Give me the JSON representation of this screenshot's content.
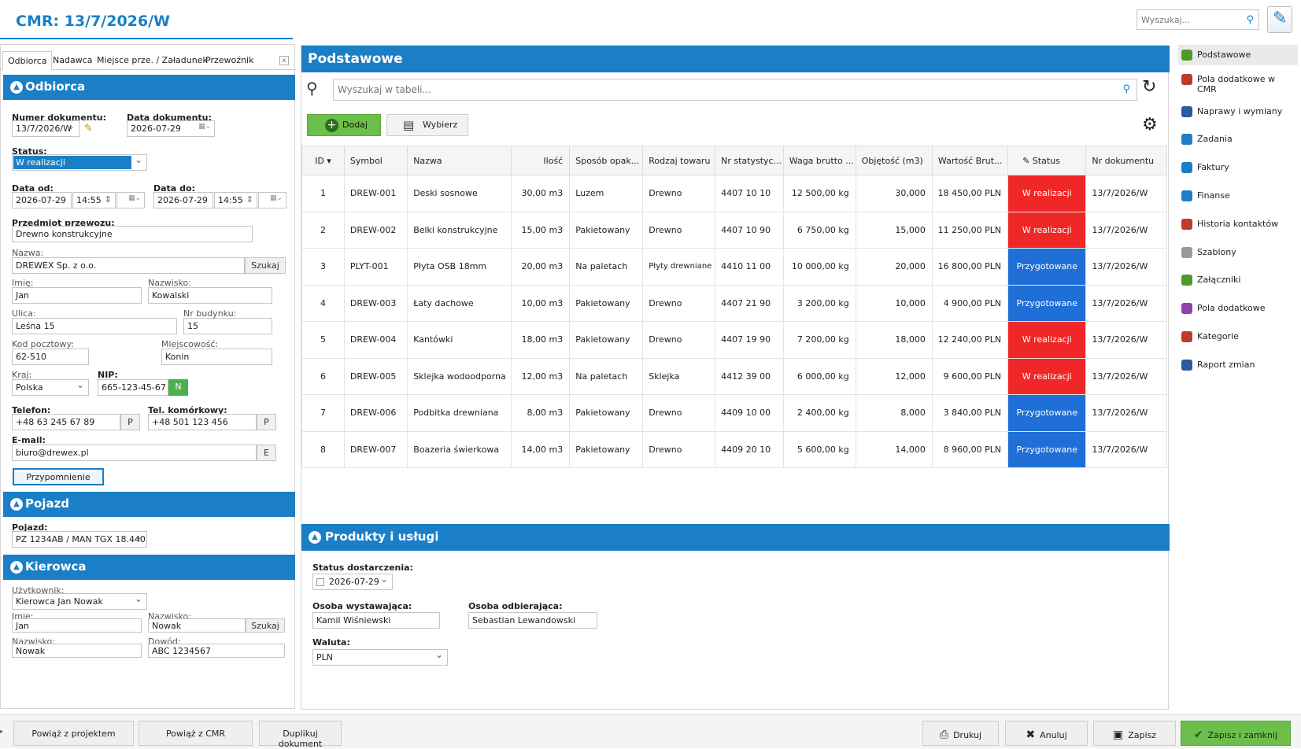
{
  "app": {
    "title": "CMR: 13/7/2026/W",
    "search_placeholder": "Wyszukaj..."
  },
  "left_tabs": [
    "Odbiorca",
    "Nadawca",
    "Miejsce prze. / Załadunek",
    "Przewoźnik"
  ],
  "odbiorca": {
    "header": "Odbiorca",
    "numer_label": "Numer dokumentu:",
    "numer": "13/7/2026/W",
    "data_dok_label": "Data dokumentu:",
    "data_dok": "2026-07-29",
    "status_label": "Status:",
    "status": "W realizacji",
    "data_od_label": "Data od:",
    "data_od": "2026-07-29",
    "czas_od": "14:55",
    "data_do_label": "Data do:",
    "data_do": "2026-07-29",
    "czas_do": "14:55",
    "przedmiot_label": "Przedmiot przewozu:",
    "przedmiot": "Drewno konstrukcyjne",
    "nazwa_label": "Nazwa:",
    "nazwa": "DREWEX Sp. z o.o.",
    "szukaj": "Szukaj",
    "imie_label": "Imię:",
    "imie": "Jan",
    "nazwisko_label": "Nazwisko:",
    "nazwisko": "Kowalski",
    "ulica_label": "Ulica:",
    "ulica": "Leśna 15",
    "nr_bud_label": "Nr budynku:",
    "nr_bud": "15",
    "kod_label": "Kod pocztowy:",
    "kod": "62-510",
    "miejsc_label": "Miejscowość:",
    "miejsc": "Konin",
    "kraj_label": "Kraj:",
    "kraj": "Polska",
    "nip_label": "NIP:",
    "nip": "665-123-45-67",
    "nip_btn": "N",
    "tel_label": "Telefon:",
    "tel": "+48 63 245 67 89",
    "p_btn": "P",
    "kom_label": "Tel. komórkowy:",
    "kom": "+48 501 123 456",
    "email_label": "E-mail:",
    "email": "biuro@drewex.pl",
    "e_btn": "E",
    "przypomnienie": "Przypomnienie"
  },
  "pojazd": {
    "header": "Pojazd",
    "label": "Pojazd:",
    "value": "PZ 1234AB / MAN TGX 18.440"
  },
  "kierowca": {
    "header": "Kierowca",
    "uzytk_label": "Użytkownik:",
    "uzytk": "Kierowca Jan Nowak",
    "imie_label": "Imię:",
    "imie": "Jan",
    "nazwisko_label": "Nazwisko:",
    "nazwisko": "Nowak",
    "szukaj": "Szukaj",
    "nazwisko2_label": "Nazwisko:",
    "nazwisko2": "Nowak",
    "dowod_label": "Dowód:",
    "dowod": "ABC 1234567"
  },
  "main": {
    "header": "Podstawowe",
    "table_search_placeholder": "Wyszukaj w tabeli...",
    "add_label": "Dodaj",
    "pick_label": "Wybierz",
    "columns": [
      "ID ▾",
      "Symbol",
      "Nazwa",
      "Ilość",
      "Sposób opak...",
      "Rodzaj towaru",
      "Nr statystyc...",
      "Waga brutto ...",
      "Objętość (m3)",
      "Wartość Brut...",
      "Status",
      "Nr dokumentu"
    ],
    "rows": [
      {
        "id": "1",
        "symbol": "DREW-001",
        "nazwa": "Deski sosnowe",
        "ilosc": "30,00  m3",
        "sposob": "Luzem",
        "rodzaj": "Drewno",
        "nrstat": "4407 10 10",
        "waga": "12 500,00 kg",
        "obj": "30,000",
        "wartosc": "18 450,00 PLN",
        "status": "W realizacji",
        "status_color": "#f02727",
        "nrdok": "13/7/2026/W"
      },
      {
        "id": "2",
        "symbol": "DREW-002",
        "nazwa": "Belki konstrukcyjne",
        "ilosc": "15,00  m3",
        "sposob": "Pakietowany",
        "rodzaj": "Drewno",
        "nrstat": "4407 10 90",
        "waga": "6 750,00 kg",
        "obj": "15,000",
        "wartosc": "11 250,00 PLN",
        "status": "W realizacji",
        "status_color": "#f02727",
        "nrdok": "13/7/2026/W"
      },
      {
        "id": "3",
        "symbol": "PLYT-001",
        "nazwa": "Płyta OSB 18mm",
        "ilosc": "20,00  m3",
        "sposob": "Na paletach",
        "rodzaj": "Płyty drewniane",
        "nrstat": "4410 11 00",
        "waga": "10 000,00 kg",
        "obj": "20,000",
        "wartosc": "16 800,00 PLN",
        "status": "Przygotowane",
        "status_color": "#1f6fd6",
        "nrdok": "13/7/2026/W"
      },
      {
        "id": "4",
        "symbol": "DREW-003",
        "nazwa": "Łaty dachowe",
        "ilosc": "10,00  m3",
        "sposob": "Pakietowany",
        "rodzaj": "Drewno",
        "nrstat": "4407 21 90",
        "waga": "3 200,00 kg",
        "obj": "10,000",
        "wartosc": "4 900,00 PLN",
        "status": "Przygotowane",
        "status_color": "#1f6fd6",
        "nrdok": "13/7/2026/W"
      },
      {
        "id": "5",
        "symbol": "DREW-004",
        "nazwa": "Kantówki",
        "ilosc": "18,00  m3",
        "sposob": "Pakietowany",
        "rodzaj": "Drewno",
        "nrstat": "4407 19 90",
        "waga": "7 200,00 kg",
        "obj": "18,000",
        "wartosc": "12 240,00 PLN",
        "status": "W realizacji",
        "status_color": "#f02727",
        "nrdok": "13/7/2026/W"
      },
      {
        "id": "6",
        "symbol": "DREW-005",
        "nazwa": "Sklejka wodoodporna",
        "ilosc": "12,00  m3",
        "sposob": "Na paletach",
        "rodzaj": "Sklejka",
        "nrstat": "4412 39 00",
        "waga": "6 000,00 kg",
        "obj": "12,000",
        "wartosc": "9 600,00 PLN",
        "status": "W realizacji",
        "status_color": "#f02727",
        "nrdok": "13/7/2026/W"
      },
      {
        "id": "7",
        "symbol": "DREW-006",
        "nazwa": "Podbitka drewniana",
        "ilosc": "8,00  m3",
        "sposob": "Pakietowany",
        "rodzaj": "Drewno",
        "nrstat": "4409 10 00",
        "waga": "2 400,00 kg",
        "obj": "8,000",
        "wartosc": "3 840,00 PLN",
        "status": "Przygotowane",
        "status_color": "#1f6fd6",
        "nrdok": "13/7/2026/W"
      },
      {
        "id": "8",
        "symbol": "DREW-007",
        "nazwa": "Boazeria świerkowa",
        "ilosc": "14,00  m3",
        "sposob": "Pakietowany",
        "rodzaj": "Drewno",
        "nrstat": "4409 20 10",
        "waga": "5 600,00 kg",
        "obj": "14,000",
        "wartosc": "8 960,00 PLN",
        "status": "Przygotowane",
        "status_color": "#1f6fd6",
        "nrdok": "13/7/2026/W"
      }
    ]
  },
  "produkty": {
    "header": "Produkty i usługi",
    "status_dost_label": "Status dostarczenia:",
    "status_dost": "2026-07-29",
    "wyst_label": "Osoba wystawająca:",
    "wyst": "Kamil Wiśniewski",
    "odb_label": "Osoba odbierająca:",
    "odb": "Sebastian Lewandowski",
    "waluta_label": "Waluta:",
    "waluta": "PLN"
  },
  "sidebar": [
    {
      "label": "Podstawowe",
      "icon": "puzzle-icon",
      "color": "#4c9a2a"
    },
    {
      "label": "Pola dodatkowe w CMR",
      "icon": "fields-icon",
      "color": "#c0392b"
    },
    {
      "label": "Naprawy i wymiany",
      "icon": "wrench-icon",
      "color": "#2c5aa0"
    },
    {
      "label": "Zadania",
      "icon": "tasks-icon",
      "color": "#1a7fc6"
    },
    {
      "label": "Faktury",
      "icon": "invoice-icon",
      "color": "#1a7fc6"
    },
    {
      "label": "Finanse",
      "icon": "finance-icon",
      "color": "#1a7fc6"
    },
    {
      "label": "Historia kontaktów",
      "icon": "history-icon",
      "color": "#c0392b"
    },
    {
      "label": "Szablony",
      "icon": "template-icon",
      "color": "#999999"
    },
    {
      "label": "Załączniki",
      "icon": "attachment-icon",
      "color": "#4c9a2a"
    },
    {
      "label": "Pola dodatkowe",
      "icon": "extra-fields-icon",
      "color": "#8e44ad"
    },
    {
      "label": "Kategorie",
      "icon": "categories-icon",
      "color": "#c0392b"
    },
    {
      "label": "Raport zmian",
      "icon": "report-icon",
      "color": "#2c5aa0"
    }
  ],
  "bottom": {
    "powiaz_projekt": "Powiąż z projektem",
    "powiaz_cmr": "Powiąż z CMR",
    "duplikuj": "Duplikuj dokument",
    "drukuj": "Drukuj",
    "anuluj": "Anuluj",
    "zapisz": "Zapisz",
    "zapisz_zamknij": "Zapisz i zamknij"
  }
}
